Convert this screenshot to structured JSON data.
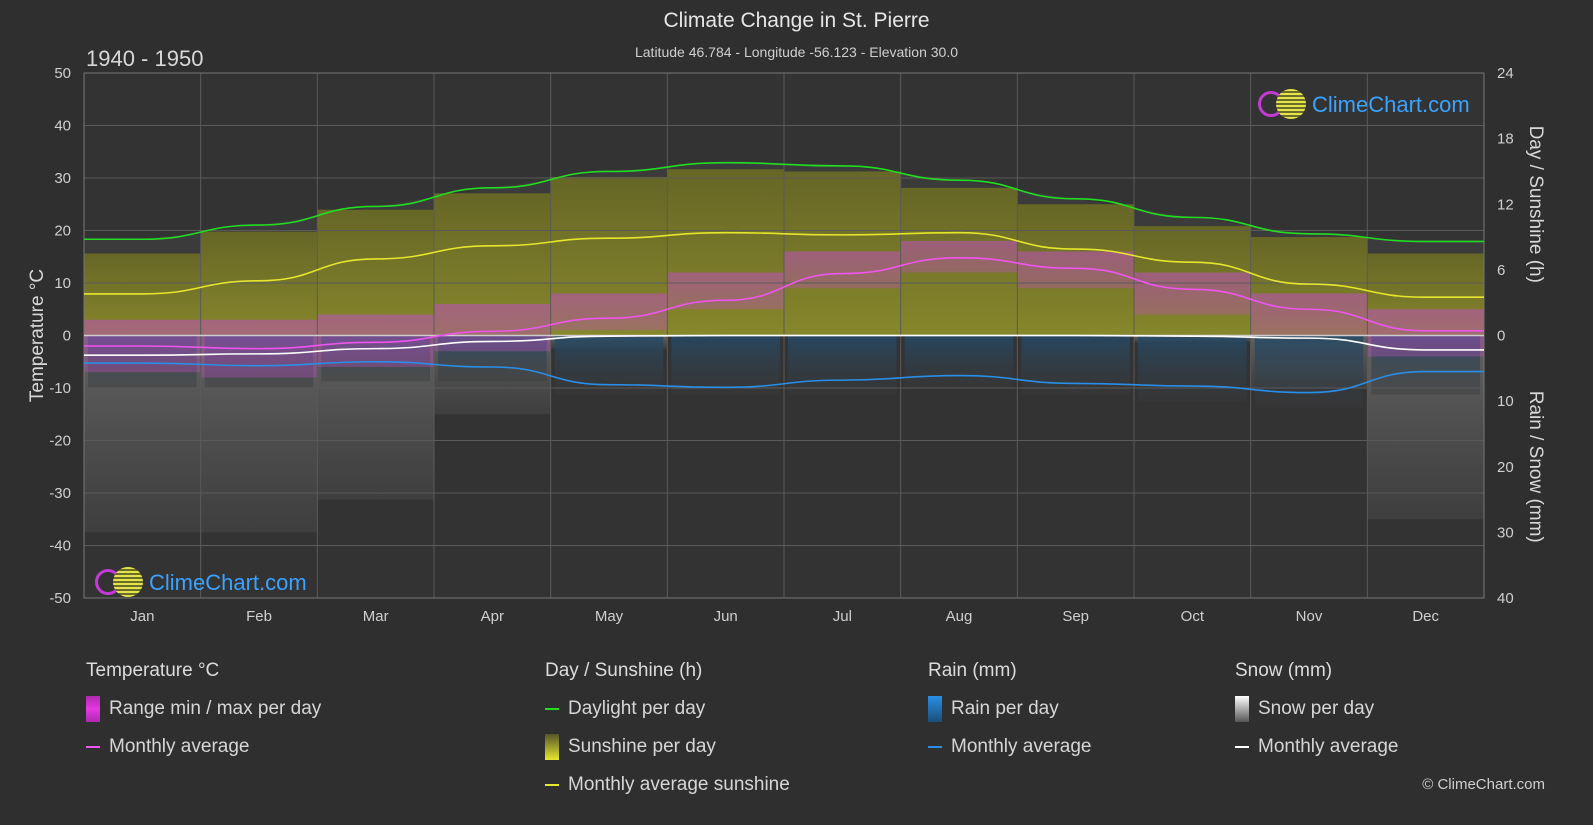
{
  "header": {
    "title": "Climate Change in St. Pierre",
    "subtitle": "Latitude 46.784 - Longitude -56.123 - Elevation 30.0",
    "period": "1940 - 1950"
  },
  "logo": {
    "text": "ClimeChart.com"
  },
  "copyright": "© ClimeChart.com",
  "chart_data": {
    "type": "line",
    "x": [
      "Jan",
      "Feb",
      "Mar",
      "Apr",
      "May",
      "Jun",
      "Jul",
      "Aug",
      "Sep",
      "Oct",
      "Nov",
      "Dec"
    ],
    "axes": {
      "left": {
        "label": "Temperature °C",
        "range": [
          -50,
          50
        ],
        "ticks": [
          50,
          40,
          30,
          20,
          10,
          0,
          -10,
          -20,
          -30,
          -40,
          -50
        ]
      },
      "right_top": {
        "label": "Day / Sunshine (h)",
        "range": [
          0,
          24
        ],
        "ticks": [
          24,
          18,
          12,
          6,
          0
        ]
      },
      "right_bottom": {
        "label": "Rain / Snow (mm)",
        "range": [
          0,
          40
        ],
        "ticks": [
          10,
          20,
          30,
          40
        ]
      }
    },
    "grid": true,
    "series": [
      {
        "name": "Daylight per day",
        "axis": "hours",
        "color": "#22dd22",
        "values": [
          8.8,
          10.1,
          11.8,
          13.5,
          15.0,
          15.8,
          15.5,
          14.2,
          12.5,
          10.8,
          9.3,
          8.6
        ]
      },
      {
        "name": "Monthly average sunshine",
        "axis": "hours",
        "color": "#e6e62e",
        "values": [
          3.8,
          5.0,
          7.0,
          8.2,
          8.9,
          9.4,
          9.2,
          9.4,
          7.9,
          6.7,
          4.7,
          3.5
        ]
      },
      {
        "name": "Temperature monthly average",
        "axis": "temperature",
        "color": "#ee55ee",
        "values": [
          -2.0,
          -2.5,
          -1.3,
          0.8,
          3.3,
          6.7,
          11.8,
          14.8,
          12.8,
          8.8,
          5.0,
          0.9
        ]
      },
      {
        "name": "Rain monthly average",
        "axis": "precip_mm",
        "color": "#2a8ee6",
        "values": [
          4.2,
          4.6,
          4.0,
          4.8,
          7.5,
          7.9,
          6.8,
          6.1,
          7.3,
          7.7,
          8.7,
          5.5
        ]
      },
      {
        "name": "Snow monthly average",
        "axis": "precip_mm",
        "color": "#ffffff",
        "values": [
          3.0,
          2.8,
          2.0,
          0.9,
          0.1,
          0.0,
          0.0,
          0.0,
          0.0,
          0.1,
          0.4,
          2.2
        ]
      }
    ],
    "daily_ranges": {
      "temperature_range": {
        "min": [
          -7,
          -8,
          -6,
          -3,
          1,
          5,
          9,
          12,
          9,
          4,
          0,
          -4
        ],
        "max": [
          3,
          3,
          4,
          6,
          8,
          12,
          16,
          18,
          16,
          12,
          8,
          5
        ]
      },
      "sunshine_per_day_hours": [
        7.5,
        9.5,
        11.5,
        13.0,
        14.5,
        15.2,
        15.0,
        13.5,
        12.0,
        10.0,
        9.0,
        7.5
      ],
      "rain_per_day_mm": [
        8,
        8,
        7,
        7,
        9,
        9,
        9,
        8,
        9,
        10,
        11,
        9
      ],
      "snow_per_day_mm": [
        30,
        30,
        25,
        12,
        2,
        0,
        0,
        0,
        0,
        1,
        8,
        28
      ]
    }
  },
  "legend": {
    "temperature": {
      "heading": "Temperature °C",
      "range": "Range min / max per day",
      "avg": "Monthly average",
      "color": "#d630d6",
      "avg_color": "#ee55ee"
    },
    "sunshine": {
      "heading": "Day / Sunshine (h)",
      "daylight": "Daylight per day",
      "sunshine": "Sunshine per day",
      "avg": "Monthly average sunshine",
      "daylight_color": "#22dd22",
      "sun_color": "#e6e62e"
    },
    "rain": {
      "heading": "Rain (mm)",
      "per_day": "Rain per day",
      "avg": "Monthly average",
      "color": "#2a8ee6"
    },
    "snow": {
      "heading": "Snow (mm)",
      "per_day": "Snow per day",
      "avg": "Monthly average",
      "color": "#ffffff"
    }
  }
}
